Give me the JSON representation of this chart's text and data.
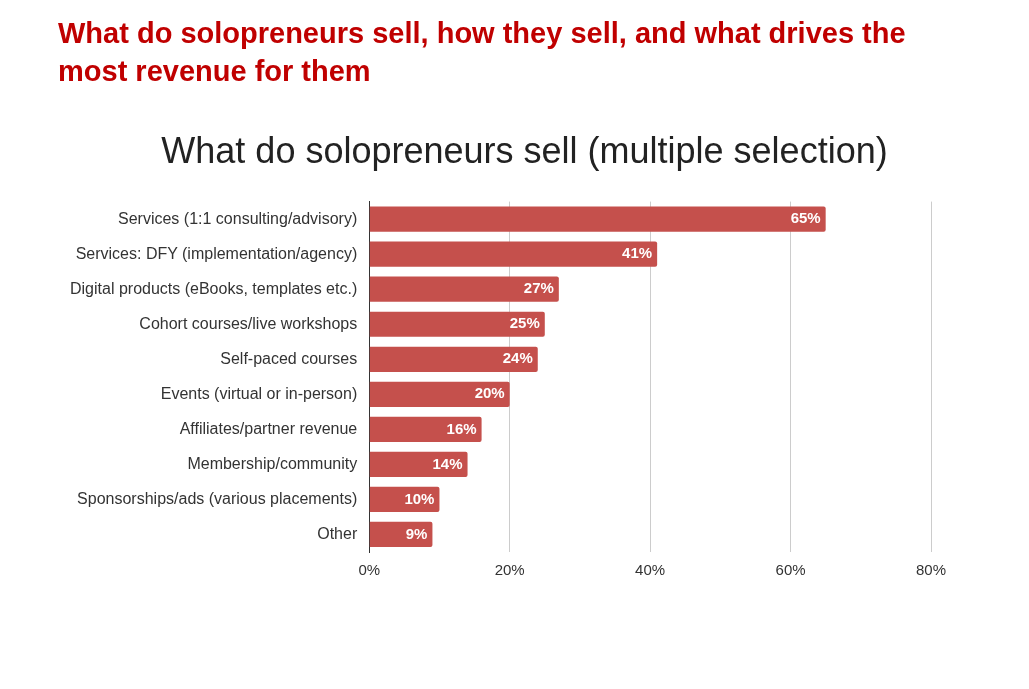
{
  "chart_data": {
    "type": "bar",
    "orientation": "horizontal",
    "title": "What do solopreneurs sell, how they sell, and what drives the most revenue for them",
    "subtitle": "What do solopreneurs sell (multiple selection)",
    "categories": [
      "Services (1:1 consulting/advisory)",
      "Services: DFY (implementation/agency)",
      "Digital products (eBooks, templates etc.)",
      "Cohort courses/live workshops",
      "Self-paced courses",
      "Events (virtual or in-person)",
      "Affiliates/partner revenue",
      "Membership/community",
      "Sponsorships/ads (various placements)",
      "Other"
    ],
    "values": [
      65,
      41,
      27,
      25,
      24,
      20,
      16,
      14,
      10,
      9
    ],
    "value_labels": [
      "65%",
      "41%",
      "27%",
      "25%",
      "24%",
      "20%",
      "16%",
      "14%",
      "10%",
      "9%"
    ],
    "color": "#c5504c",
    "xlim": [
      0,
      80
    ],
    "xticks": [
      {
        "value": 0,
        "label": "0%"
      },
      {
        "value": 20,
        "label": "20%"
      },
      {
        "value": 40,
        "label": "40%"
      },
      {
        "value": 60,
        "label": "60%"
      },
      {
        "value": 80,
        "label": "80%"
      }
    ],
    "grid": "x",
    "legend": false
  }
}
